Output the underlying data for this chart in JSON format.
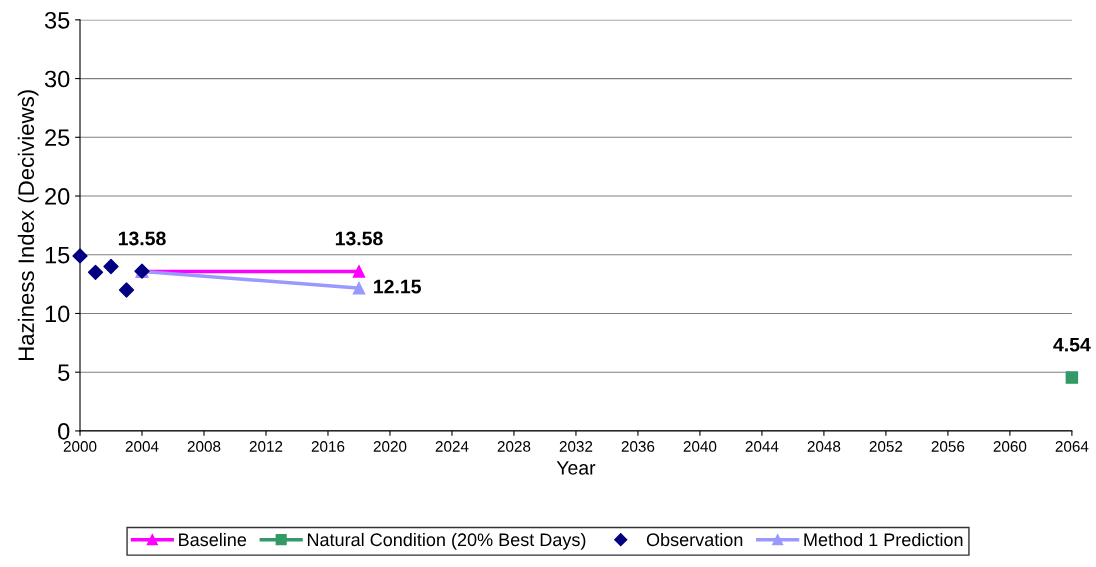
{
  "chart_data": {
    "type": "line",
    "xlabel": "Year",
    "ylabel": "Haziness Index (Deciviews)",
    "xlim": [
      2000,
      2064
    ],
    "xticks": [
      2000,
      2004,
      2008,
      2012,
      2016,
      2020,
      2024,
      2028,
      2032,
      2036,
      2040,
      2044,
      2048,
      2052,
      2056,
      2060,
      2064
    ],
    "ylim": [
      0,
      35
    ],
    "yticks": [
      0,
      5,
      10,
      15,
      20,
      25,
      30,
      35
    ],
    "grid": "y",
    "legend": "bottom",
    "series": [
      {
        "name": "Baseline",
        "color": "#ff00ff",
        "marker": "triangle",
        "x": [
          2004,
          2018
        ],
        "values": [
          13.58,
          13.58
        ],
        "value_labels": [
          "13.58",
          "13.58"
        ]
      },
      {
        "name": "Natural Condition (20% Best Days)",
        "color": "#339966",
        "marker": "square",
        "x": [
          2064
        ],
        "values": [
          4.54
        ],
        "value_labels": [
          "4.54"
        ]
      },
      {
        "name": "Observation",
        "type": "scatter",
        "color": "#000080",
        "marker": "diamond",
        "x": [
          2000,
          2001,
          2002,
          2003,
          2004
        ],
        "values": [
          14.9,
          13.5,
          14.0,
          12.0,
          13.6
        ]
      },
      {
        "name": "Method 1 Prediction",
        "color": "#9999ff",
        "marker": "triangle",
        "x": [
          2004,
          2018
        ],
        "values": [
          13.58,
          12.15
        ],
        "value_labels": [
          null,
          "12.15"
        ]
      }
    ]
  }
}
